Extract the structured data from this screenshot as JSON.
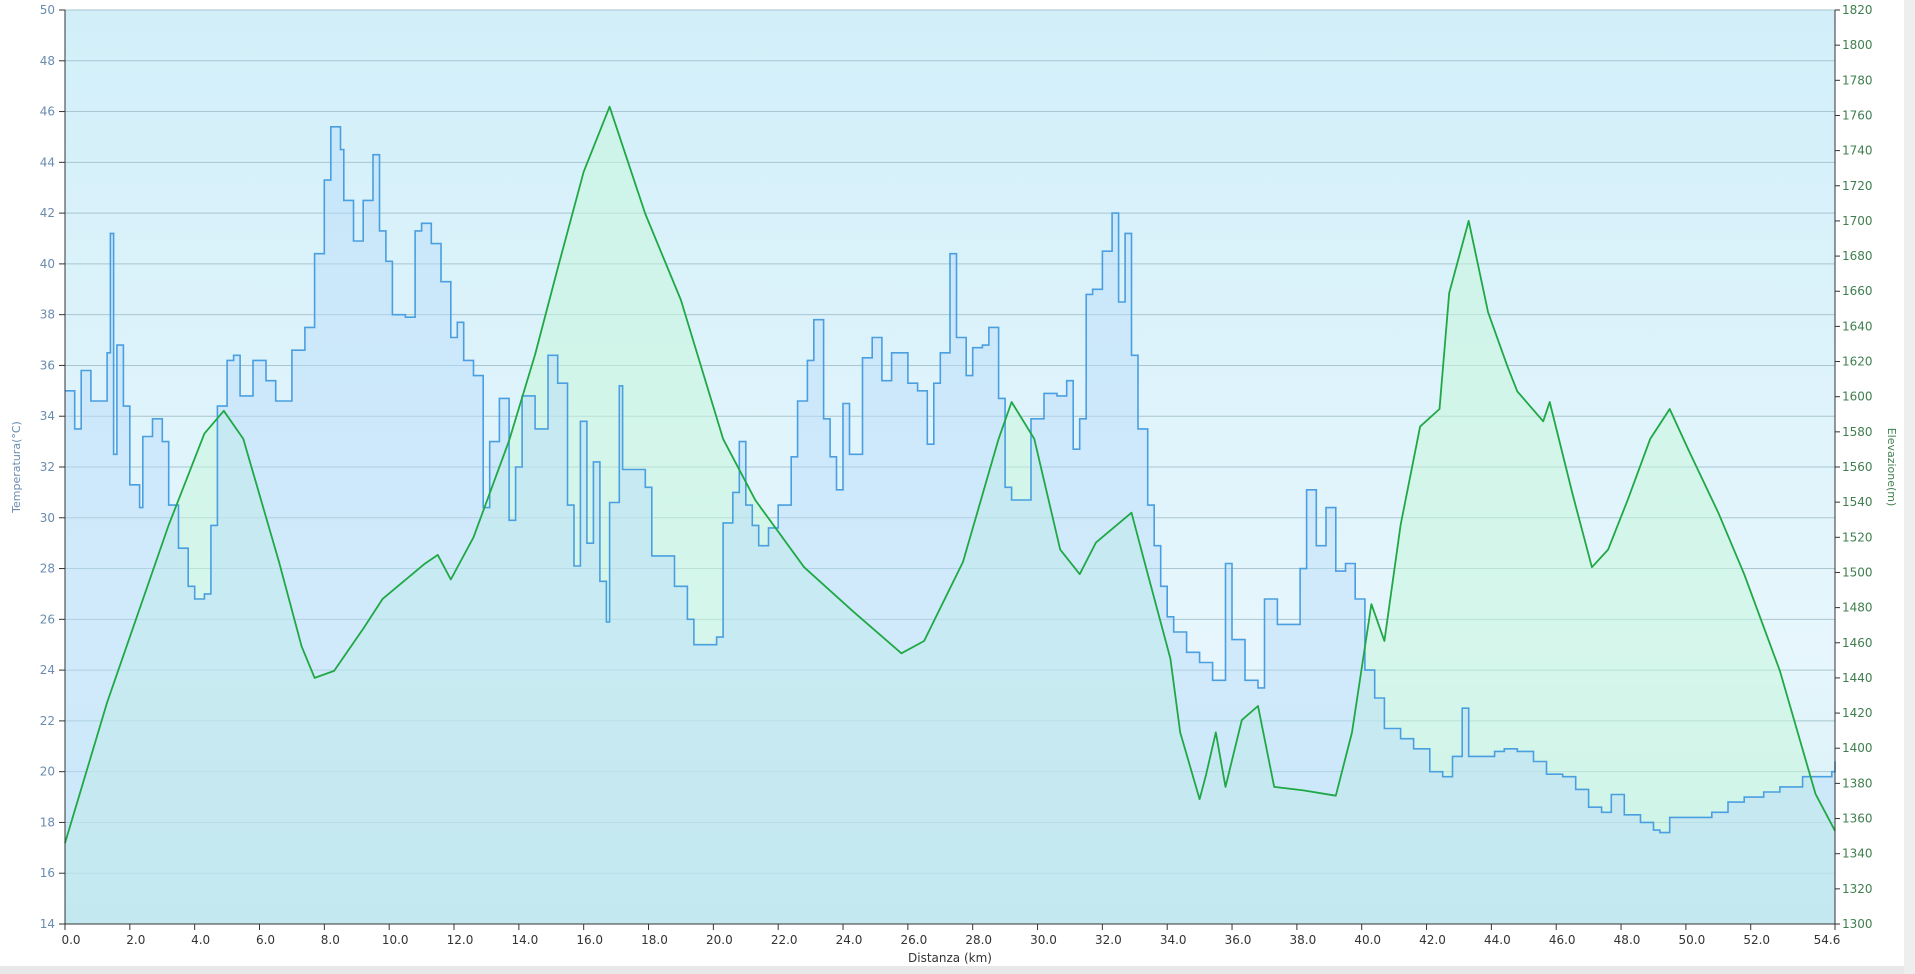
{
  "chart_data": {
    "type": "area",
    "xlabel": "Distanza  (km)",
    "ylabel_left": "Temperatura(°C)",
    "ylabel_right": "Elevazione(m)",
    "xlim": [
      0,
      54.6
    ],
    "ylim_left": [
      14,
      50
    ],
    "ylim_right": [
      1300,
      1820
    ],
    "x_ticks": [
      "0.0",
      "2.0",
      "4.0",
      "6.0",
      "8.0",
      "10.0",
      "12.0",
      "14.0",
      "16.0",
      "18.0",
      "20.0",
      "22.0",
      "24.0",
      "26.0",
      "28.0",
      "30.0",
      "32.0",
      "34.0",
      "36.0",
      "38.0",
      "40.0",
      "42.0",
      "44.0",
      "46.0",
      "48.0",
      "50.0",
      "52.0",
      "54.6"
    ],
    "y_ticks_left": [
      14,
      16,
      18,
      20,
      22,
      24,
      26,
      28,
      30,
      32,
      34,
      36,
      38,
      40,
      42,
      44,
      46,
      48,
      50
    ],
    "y_ticks_right": [
      1300,
      1320,
      1340,
      1360,
      1380,
      1400,
      1420,
      1440,
      1460,
      1480,
      1500,
      1520,
      1540,
      1560,
      1580,
      1600,
      1620,
      1640,
      1660,
      1680,
      1700,
      1720,
      1740,
      1760,
      1780,
      1800,
      1820
    ],
    "grid": true,
    "colors": {
      "temperature": "#4a9fe0",
      "elevation": "#1fa845",
      "background": "#d4f0f8"
    },
    "series": [
      {
        "name": "Temperatura(°C)",
        "axis": "left",
        "x": [
          0,
          0.3,
          0.5,
          0.8,
          1.0,
          1.3,
          1.4,
          1.5,
          1.6,
          1.8,
          2.0,
          2.3,
          2.4,
          2.7,
          3.0,
          3.2,
          3.5,
          3.8,
          4.0,
          4.3,
          4.5,
          4.7,
          5.0,
          5.2,
          5.4,
          5.8,
          6.2,
          6.5,
          7.0,
          7.4,
          7.7,
          8.0,
          8.2,
          8.5,
          8.6,
          8.9,
          9.2,
          9.5,
          9.7,
          9.9,
          10.1,
          10.5,
          10.8,
          11.0,
          11.3,
          11.6,
          11.9,
          12.1,
          12.3,
          12.6,
          12.9,
          13.1,
          13.4,
          13.7,
          13.9,
          14.1,
          14.5,
          14.9,
          15.2,
          15.5,
          15.7,
          15.9,
          16.1,
          16.3,
          16.5,
          16.7,
          16.8,
          17.1,
          17.2,
          17.6,
          17.9,
          18.1,
          18.5,
          18.8,
          19.2,
          19.4,
          19.8,
          20.1,
          20.3,
          20.6,
          20.8,
          21.0,
          21.2,
          21.4,
          21.7,
          22.0,
          22.4,
          22.6,
          22.9,
          23.1,
          23.4,
          23.6,
          23.8,
          24.0,
          24.2,
          24.6,
          24.9,
          25.2,
          25.5,
          26.0,
          26.3,
          26.6,
          26.8,
          27.0,
          27.3,
          27.5,
          27.8,
          28.0,
          28.3,
          28.5,
          28.8,
          29.0,
          29.2,
          29.5,
          29.8,
          30.2,
          30.6,
          30.9,
          31.1,
          31.3,
          31.5,
          31.7,
          32.0,
          32.3,
          32.5,
          32.7,
          32.9,
          33.1,
          33.4,
          33.6,
          33.8,
          34.0,
          34.2,
          34.6,
          35.0,
          35.4,
          35.8,
          36.0,
          36.4,
          36.8,
          37.0,
          37.4,
          37.7,
          38.1,
          38.3,
          38.6,
          38.9,
          39.2,
          39.5,
          39.8,
          40.1,
          40.4,
          40.7,
          41.2,
          41.6,
          42.1,
          42.5,
          42.8,
          43.1,
          43.3,
          43.7,
          44.1,
          44.4,
          44.8,
          45.3,
          45.7,
          46.2,
          46.6,
          47.0,
          47.4,
          47.7,
          48.1,
          48.6,
          49.0,
          49.2,
          49.5,
          50.4,
          50.8,
          51.3,
          51.8,
          52.4,
          52.9,
          53.6,
          54.2,
          54.5,
          54.6
        ],
        "values": [
          35,
          33.5,
          35.8,
          34.6,
          34.6,
          36.5,
          41.2,
          32.5,
          36.8,
          34.4,
          31.3,
          30.4,
          33.2,
          33.9,
          33,
          30.5,
          28.8,
          27.3,
          26.8,
          27,
          29.7,
          34.4,
          36.2,
          36.4,
          34.8,
          36.2,
          35.4,
          34.6,
          36.6,
          37.5,
          40.4,
          43.3,
          45.4,
          44.5,
          42.5,
          40.9,
          42.5,
          44.3,
          41.3,
          40.1,
          38,
          37.9,
          41.3,
          41.6,
          40.8,
          39.3,
          37.1,
          37.7,
          36.2,
          35.6,
          30.4,
          33,
          34.7,
          29.9,
          32,
          34.8,
          33.5,
          36.4,
          35.3,
          30.5,
          28.1,
          33.8,
          29,
          32.2,
          27.5,
          25.9,
          30.6,
          35.2,
          31.9,
          31.9,
          31.2,
          28.5,
          28.5,
          27.3,
          26,
          25,
          25,
          25.3,
          29.8,
          31,
          33,
          30.5,
          29.7,
          28.9,
          29.6,
          30.5,
          32.4,
          34.6,
          36.2,
          37.8,
          33.9,
          32.4,
          31.1,
          34.5,
          32.5,
          36.3,
          37.1,
          35.4,
          36.5,
          35.3,
          35,
          32.9,
          35.3,
          36.5,
          40.4,
          37.1,
          35.6,
          36.7,
          36.8,
          37.5,
          34.7,
          31.2,
          30.7,
          30.7,
          33.9,
          34.9,
          34.8,
          35.4,
          32.7,
          33.9,
          38.8,
          39,
          40.5,
          42,
          38.5,
          41.2,
          36.4,
          33.5,
          30.5,
          28.9,
          27.3,
          26.1,
          25.5,
          24.7,
          24.3,
          23.6,
          28.2,
          25.2,
          23.6,
          23.3,
          26.8,
          25.8,
          25.8,
          28,
          31.1,
          28.9,
          30.4,
          27.9,
          28.2,
          26.8,
          24,
          22.9,
          21.7,
          21.3,
          20.9,
          20,
          19.8,
          20.6,
          22.5,
          20.6,
          20.6,
          20.8,
          20.9,
          20.8,
          20.4,
          19.9,
          19.8,
          19.3,
          18.6,
          18.4,
          19.1,
          18.3,
          18,
          17.7,
          17.6,
          18.2,
          18.2,
          18.4,
          18.8,
          19,
          19.2,
          19.4,
          19.8,
          19.8,
          20,
          20.4
        ]
      },
      {
        "name": "Elevazione(m)",
        "axis": "right",
        "x": [
          0,
          1.3,
          3.2,
          4.3,
          4.9,
          5.5,
          6.6,
          7.3,
          7.7,
          8.3,
          9.2,
          9.8,
          11.1,
          11.5,
          11.9,
          12.6,
          13.7,
          14.5,
          15.2,
          16.0,
          16.8,
          17.9,
          19.0,
          20.3,
          21.3,
          22.8,
          24.3,
          25.8,
          26.5,
          27.7,
          28.8,
          29.2,
          29.9,
          30.7,
          31.3,
          31.8,
          32.9,
          33.3,
          34.1,
          34.4,
          35.0,
          35.2,
          35.5,
          35.8,
          36.3,
          36.8,
          37.3,
          38.2,
          39.2,
          39.7,
          40.3,
          40.7,
          41.2,
          41.8,
          42.4,
          42.7,
          43.3,
          43.9,
          44.5,
          44.8,
          45.6,
          45.8,
          46.5,
          47.1,
          47.6,
          48.2,
          48.9,
          49.5,
          50.1,
          51.0,
          51.8,
          52.9,
          54.0,
          54.6
        ],
        "values": [
          1346,
          1426,
          1527,
          1579,
          1592,
          1576,
          1506,
          1458,
          1440,
          1444,
          1468,
          1485,
          1505,
          1510,
          1496,
          1520,
          1575,
          1624,
          1673,
          1728,
          1765,
          1704,
          1655,
          1576,
          1541,
          1503,
          1478,
          1454,
          1461,
          1506,
          1576,
          1597,
          1576,
          1513,
          1499,
          1517,
          1534,
          1506,
          1451,
          1409,
          1371,
          1385,
          1409,
          1378,
          1416,
          1424,
          1378,
          1376,
          1373,
          1409,
          1482,
          1461,
          1527,
          1583,
          1593,
          1659,
          1700,
          1648,
          1617,
          1603,
          1586,
          1597,
          1545,
          1503,
          1513,
          1541,
          1576,
          1593,
          1569,
          1534,
          1499,
          1444,
          1374,
          1353
        ]
      }
    ]
  }
}
